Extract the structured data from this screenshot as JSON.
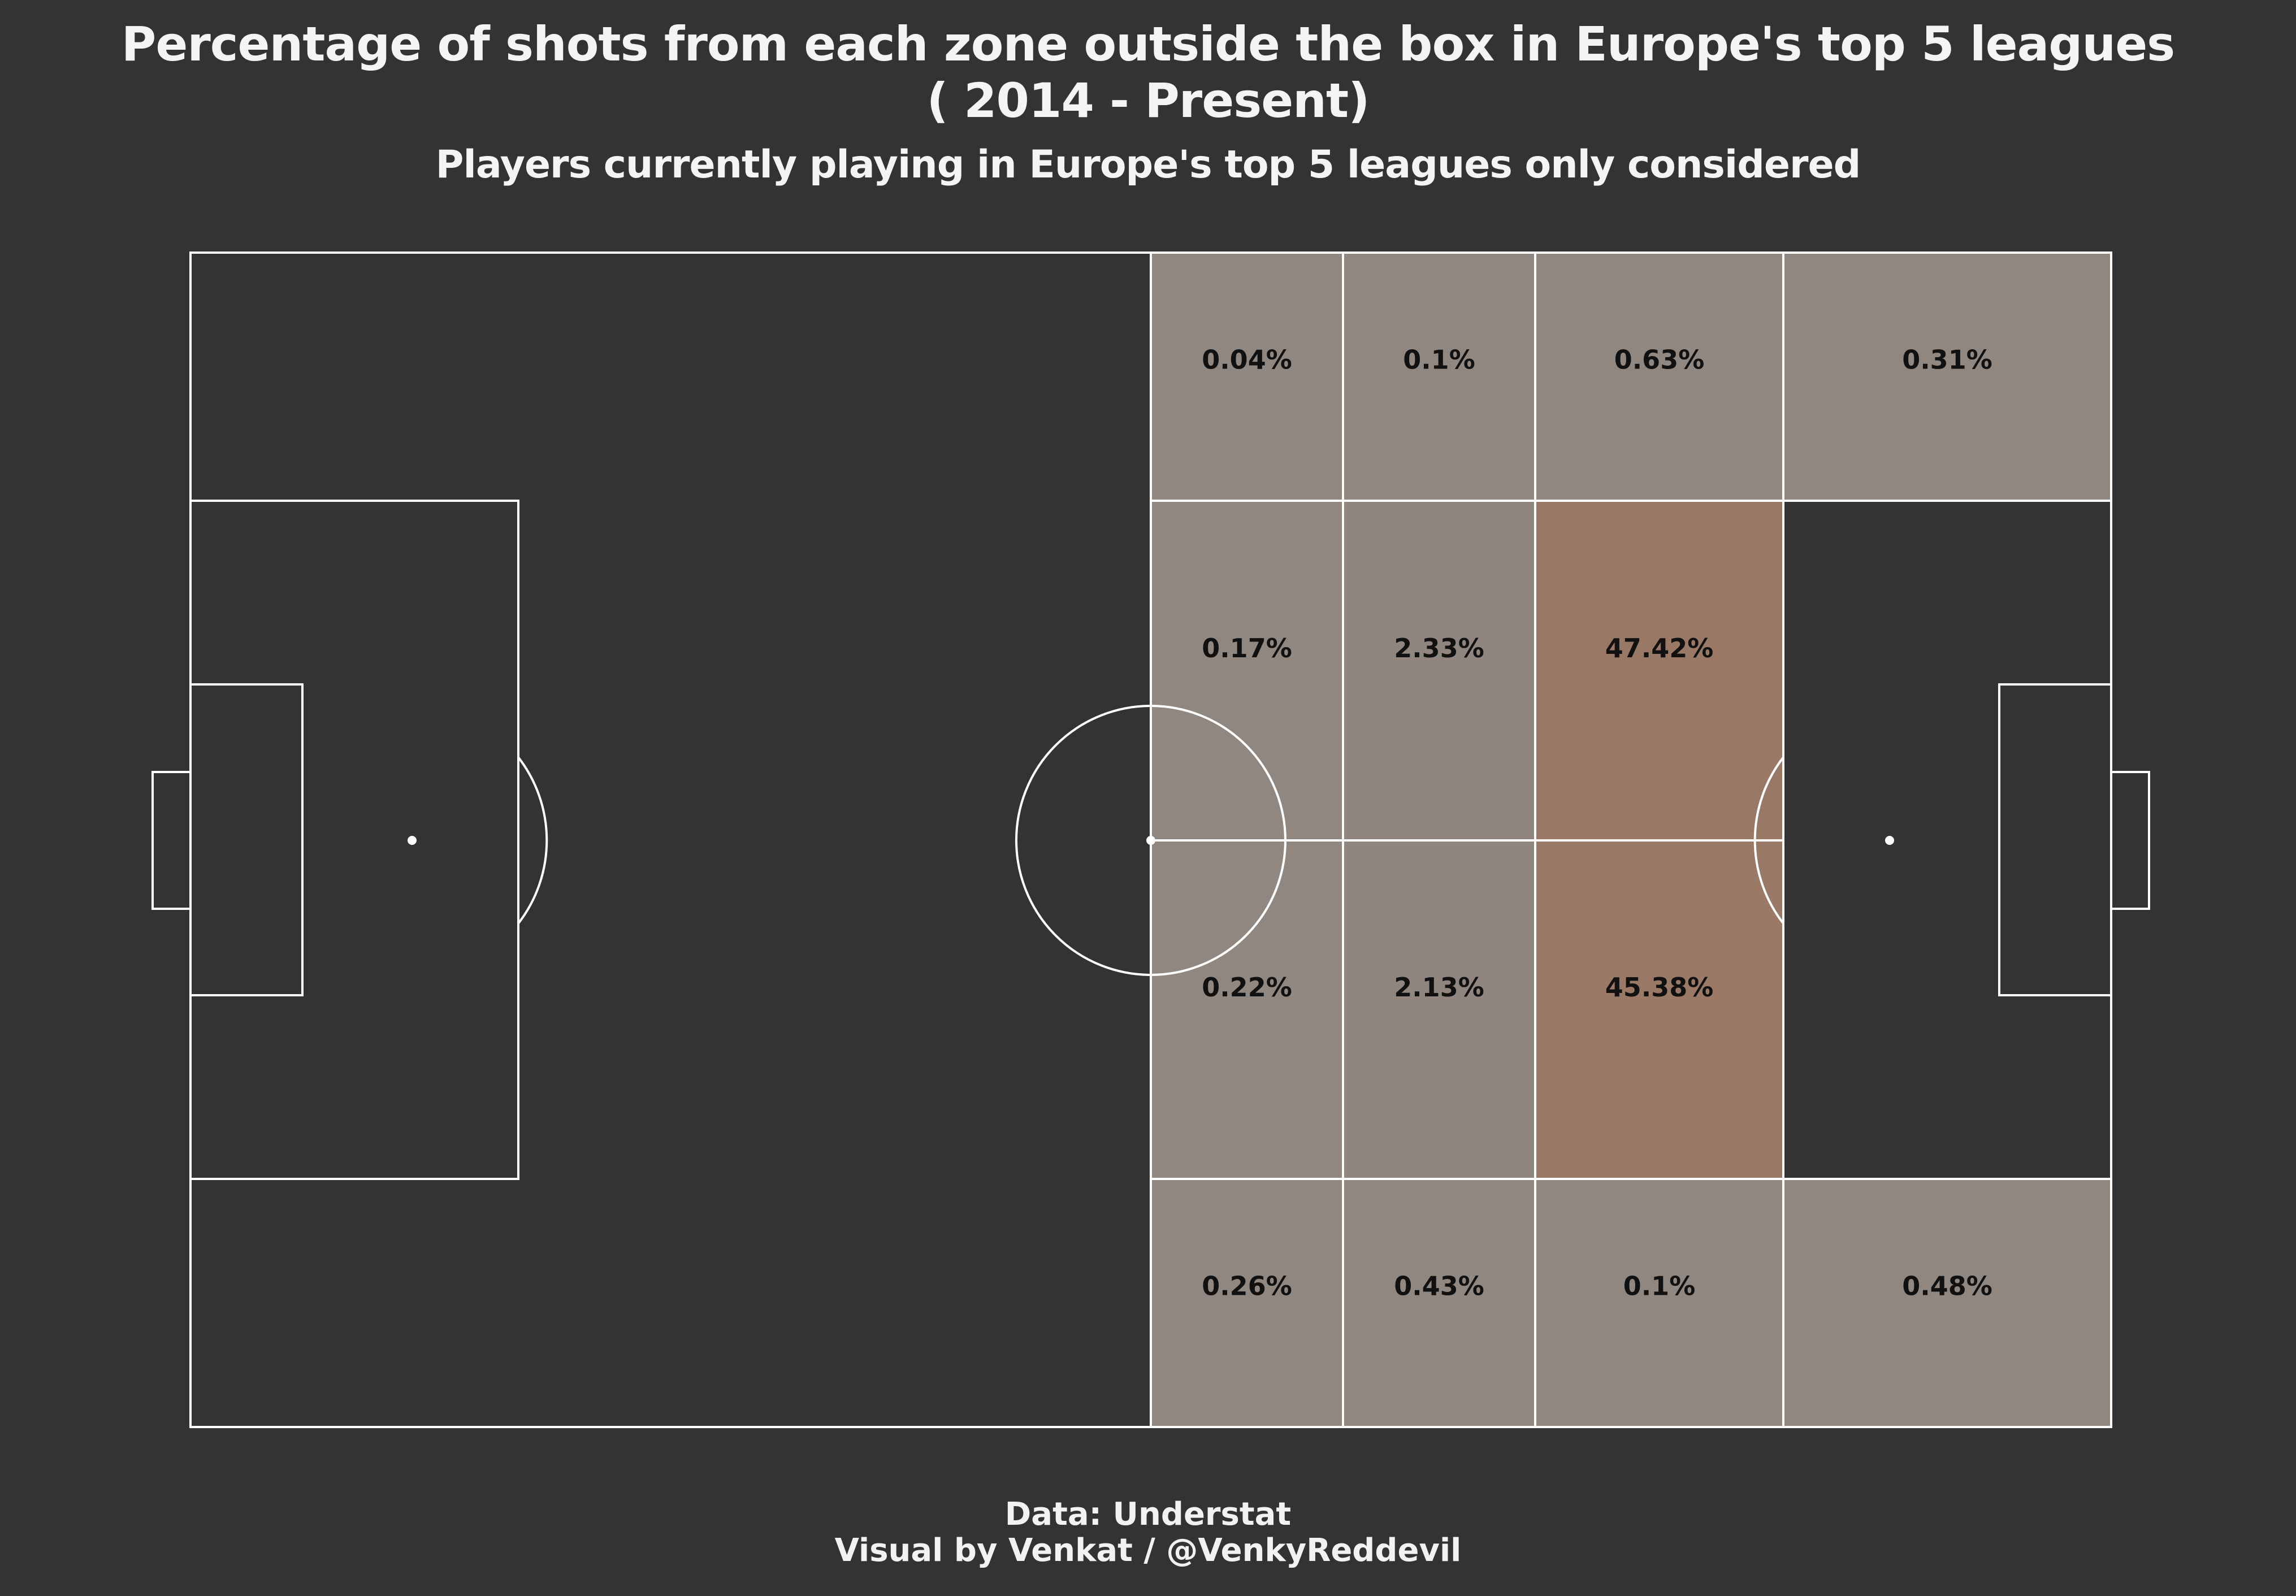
{
  "header": {
    "title_line1": "Percentage of shots from each zone outside the box in Europe's top 5 leagues",
    "title_line2": "( 2014 - Present)",
    "subtitle": "Players currently playing in Europe's top 5 leagues only considered"
  },
  "footer": {
    "source": "Data: Understat",
    "credit": "Visual by Venkat / @VenkyReddevil"
  },
  "colors": {
    "background": "#333333",
    "pitch_line": "#ffffff",
    "zone_low": "#908780",
    "zone_high": "#9a7866",
    "label_text": "#111111"
  },
  "chart_data": {
    "type": "heatmap",
    "title": "Percentage of shots from each zone outside the box in Europe's top 5 leagues ( 2014 - Present)",
    "subtitle": "Players currently playing in Europe's top 5 leagues only considered",
    "unit": "%",
    "rows": [
      "top",
      "upper-middle",
      "lower-middle",
      "bottom"
    ],
    "columns": [
      "col-1",
      "col-2",
      "col-3",
      "col-4"
    ],
    "zones": [
      {
        "row": 0,
        "col": 0,
        "value": 0.04,
        "label": "0.04%"
      },
      {
        "row": 0,
        "col": 1,
        "value": 0.1,
        "label": "0.1%"
      },
      {
        "row": 0,
        "col": 2,
        "value": 0.63,
        "label": "0.63%"
      },
      {
        "row": 0,
        "col": 3,
        "value": 0.31,
        "label": "0.31%"
      },
      {
        "row": 1,
        "col": 0,
        "value": 0.17,
        "label": "0.17%"
      },
      {
        "row": 1,
        "col": 1,
        "value": 2.33,
        "label": "2.33%"
      },
      {
        "row": 1,
        "col": 2,
        "value": 47.42,
        "label": "47.42%"
      },
      {
        "row": 2,
        "col": 0,
        "value": 0.22,
        "label": "0.22%"
      },
      {
        "row": 2,
        "col": 1,
        "value": 2.13,
        "label": "2.13%"
      },
      {
        "row": 2,
        "col": 2,
        "value": 45.38,
        "label": "45.38%"
      },
      {
        "row": 3,
        "col": 0,
        "value": 0.26,
        "label": "0.26%"
      },
      {
        "row": 3,
        "col": 1,
        "value": 0.43,
        "label": "0.43%"
      },
      {
        "row": 3,
        "col": 2,
        "value": 0.1,
        "label": "0.1%"
      },
      {
        "row": 3,
        "col": 3,
        "value": 0.48,
        "label": "0.48%"
      }
    ]
  }
}
